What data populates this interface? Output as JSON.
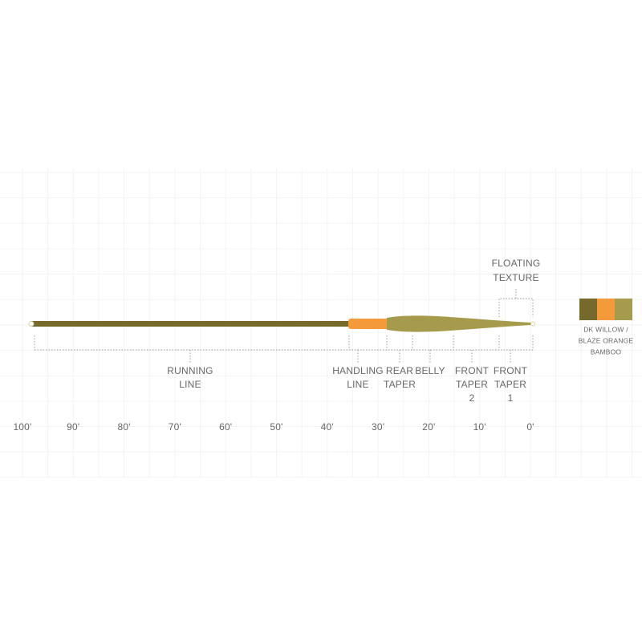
{
  "floating": {
    "lines": [
      "FLOATING",
      "TEXTURE"
    ]
  },
  "sections": [
    {
      "lines": [
        "RUNNING",
        "LINE"
      ]
    },
    {
      "lines": [
        "HANDLING",
        "LINE"
      ]
    },
    {
      "lines": [
        "REAR",
        "TAPER"
      ]
    },
    {
      "lines": [
        "BELLY"
      ]
    },
    {
      "lines": [
        "FRONT",
        "TAPER",
        "2"
      ]
    },
    {
      "lines": [
        "FRONT",
        "TAPER",
        "1"
      ]
    }
  ],
  "scale": [
    "100'",
    "90'",
    "80'",
    "70'",
    "60'",
    "50'",
    "40'",
    "30'",
    "20'",
    "10'",
    "0'"
  ],
  "swatch": {
    "lines": [
      "DK WILLOW /",
      "BLAZE ORANGE",
      "BAMBOO"
    ]
  }
}
